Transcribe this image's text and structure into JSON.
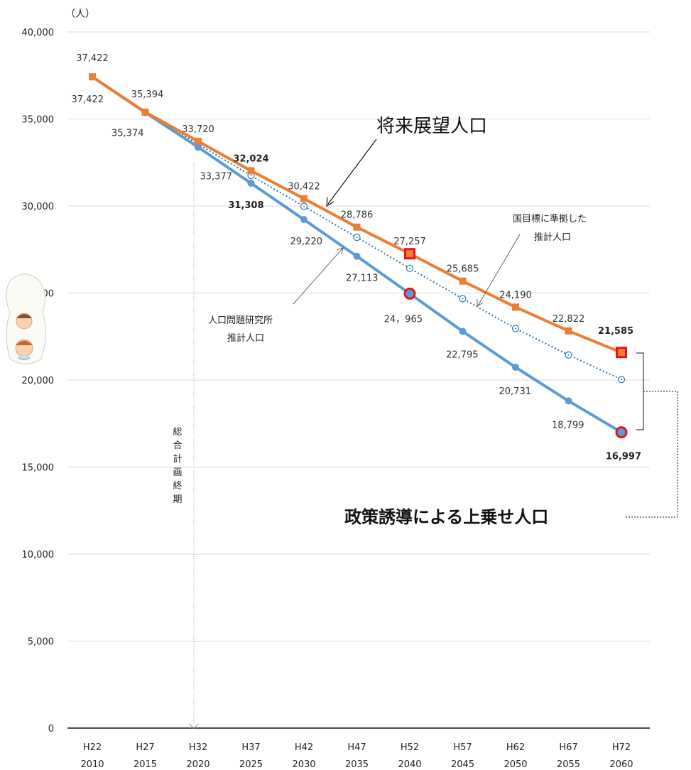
{
  "chart_data": {
    "type": "line",
    "ylabel": "（人）",
    "ylim": [
      0,
      40000
    ],
    "yticks": [
      "0",
      "5,000",
      "10,000",
      "15,000",
      "20,000",
      "25,000",
      "30,000",
      "35,000",
      "40,000"
    ],
    "categories": [
      {
        "era": "H22",
        "year": "2010"
      },
      {
        "era": "H27",
        "year": "2015"
      },
      {
        "era": "H32",
        "year": "2020"
      },
      {
        "era": "H37",
        "year": "2025"
      },
      {
        "era": "H42",
        "year": "2030"
      },
      {
        "era": "H47",
        "year": "2035"
      },
      {
        "era": "H52",
        "year": "2040"
      },
      {
        "era": "H57",
        "year": "2045"
      },
      {
        "era": "H62",
        "year": "2050"
      },
      {
        "era": "H67",
        "year": "2055"
      },
      {
        "era": "H72",
        "year": "2060"
      }
    ],
    "series": [
      {
        "key": "vision",
        "color": "#ED7D31",
        "marker": "square",
        "values": [
          37422,
          35394,
          33720,
          32024,
          30422,
          28786,
          27257,
          25685,
          24190,
          22822,
          21585
        ],
        "labels": [
          "37,422",
          "35,394",
          "33,720",
          "32,024",
          "30,422",
          "28,786",
          "27,257",
          "25,685",
          "24,190",
          "22,822",
          "21,585"
        ],
        "bold": [
          false,
          false,
          false,
          true,
          false,
          false,
          false,
          false,
          false,
          false,
          true
        ],
        "highlight": [
          6,
          10
        ]
      },
      {
        "key": "ipss",
        "color": "#5B9BD5",
        "marker": "circle",
        "values": [
          37422,
          35374,
          33377,
          31308,
          29220,
          27113,
          24965,
          22795,
          20731,
          18799,
          16997
        ],
        "labels": [
          "37,422",
          "35,374",
          "33,377",
          "31,308",
          "29,220",
          "27,113",
          "24，965",
          "22,795",
          "20,731",
          "18,799",
          "16,997"
        ],
        "bold": [
          false,
          false,
          false,
          true,
          false,
          false,
          false,
          false,
          false,
          false,
          true
        ],
        "highlight": [
          6,
          10
        ]
      },
      {
        "key": "national",
        "color": "#2E75B6",
        "marker": "open-circle",
        "values": [
          37422,
          35384,
          33550,
          31750,
          29980,
          28200,
          26420,
          24680,
          22960,
          21440,
          20030
        ]
      }
    ],
    "annotations": {
      "vision_title": "将来展望人口",
      "national_line1": "国目標に準拠した",
      "national_line2": "推計人口",
      "ipss_line1": "人口問題研究所",
      "ipss_line2": "推計人口",
      "plan_end": "総合計画終期",
      "policy": "政策誘導による上乗せ人口"
    }
  }
}
